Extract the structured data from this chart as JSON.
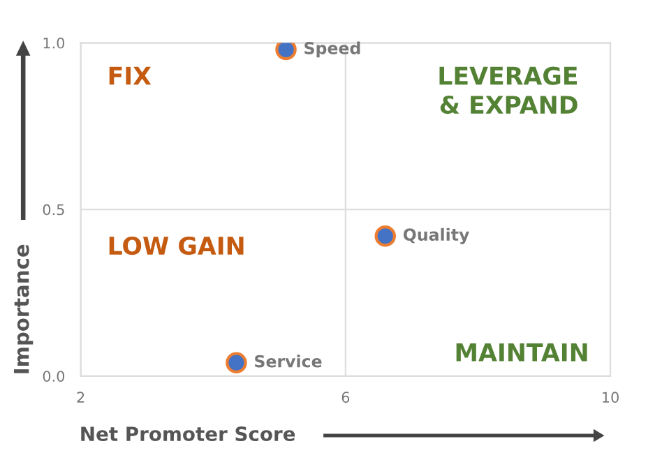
{
  "chart_data": {
    "type": "scatter",
    "xlabel": "Net Promoter Score",
    "ylabel": "Importance",
    "x": [
      5.1,
      6.6,
      4.35
    ],
    "series": [
      {
        "color": "#4472c4",
        "values": [
          0.98,
          0.42,
          0.04
        ]
      }
    ],
    "marker": "circle",
    "xlim": [
      2,
      10
    ],
    "xticks": [
      2,
      6,
      10
    ],
    "ylim": [
      0,
      1
    ],
    "yticks": [
      {
        "value": 0,
        "label": "0.0"
      },
      {
        "value": 0.5,
        "label": "0.5"
      },
      {
        "value": 1,
        "label": "1.0"
      }
    ],
    "grid": true,
    "legend": false,
    "annotations": [
      {
        "text": "Speed",
        "x": 5.1,
        "y": 0.98
      },
      {
        "text": "Quality",
        "x": 6.6,
        "y": 0.42
      },
      {
        "text": "Service",
        "x": 4.35,
        "y": 0.04
      },
      "FIX",
      "LEVERAGE\n& EXPAND",
      "LOW GAIN",
      "MAINTAIN"
    ]
  }
}
